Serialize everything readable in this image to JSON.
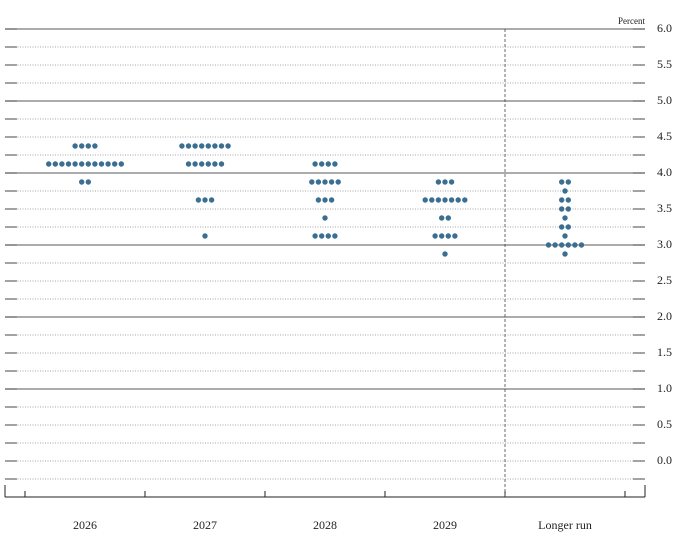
{
  "chart_data": {
    "type": "dot",
    "axis_label": "Percent",
    "categories": [
      "2026",
      "2027",
      "2028",
      "2029",
      "Longer run"
    ],
    "dots": [
      {
        "levels": [
          4.375,
          4.125,
          3.875
        ],
        "counts": [
          4,
          12,
          2
        ]
      },
      {
        "levels": [
          4.375,
          4.125,
          3.625,
          3.125
        ],
        "counts": [
          8,
          6,
          3,
          1
        ]
      },
      {
        "levels": [
          4.125,
          3.875,
          3.625,
          3.375,
          3.125
        ],
        "counts": [
          4,
          5,
          3,
          1,
          4
        ]
      },
      {
        "levels": [
          3.875,
          3.625,
          3.375,
          3.125,
          2.875
        ],
        "counts": [
          3,
          7,
          2,
          4,
          1
        ]
      },
      {
        "levels": [
          3.875,
          3.75,
          3.625,
          3.5,
          3.375,
          3.25,
          3.125,
          3.0,
          2.875
        ],
        "counts": [
          2,
          1,
          2,
          2,
          1,
          2,
          1,
          6,
          1
        ]
      }
    ],
    "color": "#3b6f91",
    "ylim": [
      -0.5,
      6
    ],
    "yticks": [
      {
        "value": 0,
        "label": "0.0"
      },
      0.5,
      {
        "value": 1,
        "label": "1.0"
      },
      1.5,
      {
        "value": 2,
        "label": "2.0"
      },
      2.5,
      {
        "value": 3,
        "label": "3.0"
      },
      3.5,
      {
        "value": 4,
        "label": "4.0"
      },
      4.5,
      {
        "value": 5,
        "label": "5.0"
      },
      5.5,
      {
        "value": 6,
        "label": "6.0"
      }
    ],
    "major_gridlines": [
      1,
      2,
      3,
      4,
      5,
      6
    ],
    "minor_grid": true,
    "separator_before_last": true
  }
}
